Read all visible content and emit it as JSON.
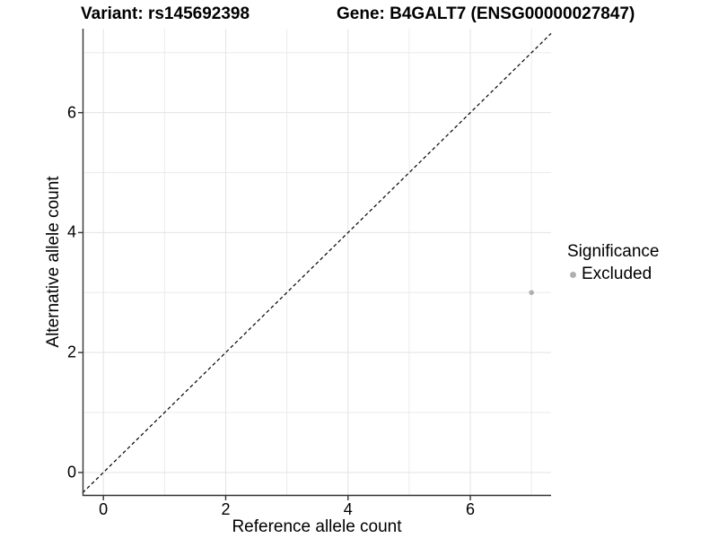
{
  "chart_data": {
    "type": "scatter",
    "title_left": "Variant: rs145692398",
    "title_right": "Gene: B4GALT7 (ENSG00000027847)",
    "xlabel": "Reference allele count",
    "ylabel": "Alternative allele count",
    "xlim": [
      -0.34,
      7.32
    ],
    "ylim": [
      -0.39,
      7.4
    ],
    "x_ticks": [
      0,
      2,
      4,
      6
    ],
    "y_ticks": [
      0,
      2,
      4,
      6
    ],
    "grid_major_x": [
      0,
      2,
      4,
      6
    ],
    "grid_minor_x": [
      1,
      3,
      5,
      7
    ],
    "grid_major_y": [
      0,
      2,
      4,
      6
    ],
    "grid_minor_y": [
      1,
      3,
      5,
      7
    ],
    "identity_line": {
      "equation": "y = x",
      "style": "dashed"
    },
    "series": [
      {
        "name": "Excluded",
        "points": [
          {
            "x": 7,
            "y": 3
          }
        ]
      }
    ],
    "legend": {
      "title": "Significance",
      "position": "right",
      "items": [
        {
          "label": "Excluded",
          "color": "#b0b0b0"
        }
      ]
    }
  },
  "colors": {
    "background": "#ffffff",
    "grid_major": "#e3e3e3",
    "grid_minor": "#ebebeb",
    "axis_line": "#333333",
    "tick_mark": "#333333",
    "text": "#000000",
    "point": "#b0b0b0",
    "identity_line": "#000000"
  }
}
